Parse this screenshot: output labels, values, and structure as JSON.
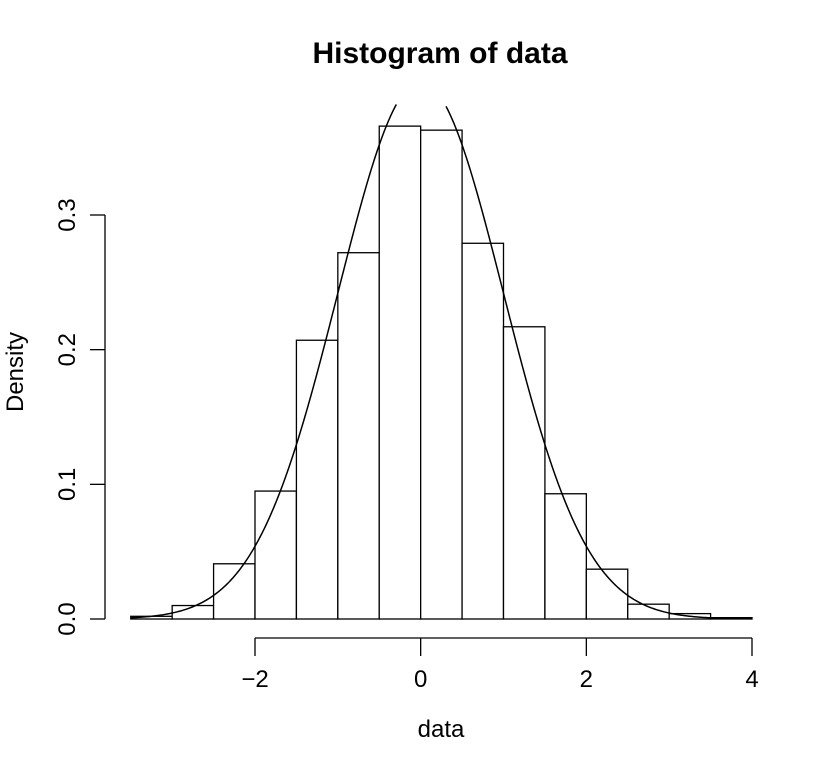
{
  "chart_data": {
    "type": "bar",
    "title": "Histogram of data",
    "xlabel": "data",
    "ylabel": "Density",
    "xlim": [
      -3.5,
      4.0
    ],
    "ylim": [
      0.0,
      0.34
    ],
    "x_ticks": [
      -2,
      0,
      2,
      4
    ],
    "x_tick_labels": [
      "−2",
      "0",
      "2",
      "4"
    ],
    "y_ticks": [
      0.0,
      0.1,
      0.2,
      0.3
    ],
    "y_tick_labels": [
      "0.0",
      "0.1",
      "0.2",
      "0.3"
    ],
    "bin_edges": [
      -3.5,
      -3.0,
      -2.5,
      -2.0,
      -1.5,
      -1.0,
      -0.5,
      0.0,
      0.5,
      1.0,
      1.5,
      2.0,
      2.5,
      3.0,
      3.5,
      4.0
    ],
    "values": [
      0.002,
      0.01,
      0.041,
      0.095,
      0.207,
      0.272,
      0.366,
      0.363,
      0.279,
      0.217,
      0.093,
      0.037,
      0.011,
      0.004,
      0.001
    ],
    "curve": {
      "type": "line",
      "distribution": "normal",
      "mean": 0,
      "sd": 1,
      "x_range": [
        -3.5,
        4.0
      ]
    },
    "grid": false,
    "colors": {
      "bar_fill": "#ffffff",
      "stroke": "#000000",
      "background": "#ffffff"
    }
  }
}
